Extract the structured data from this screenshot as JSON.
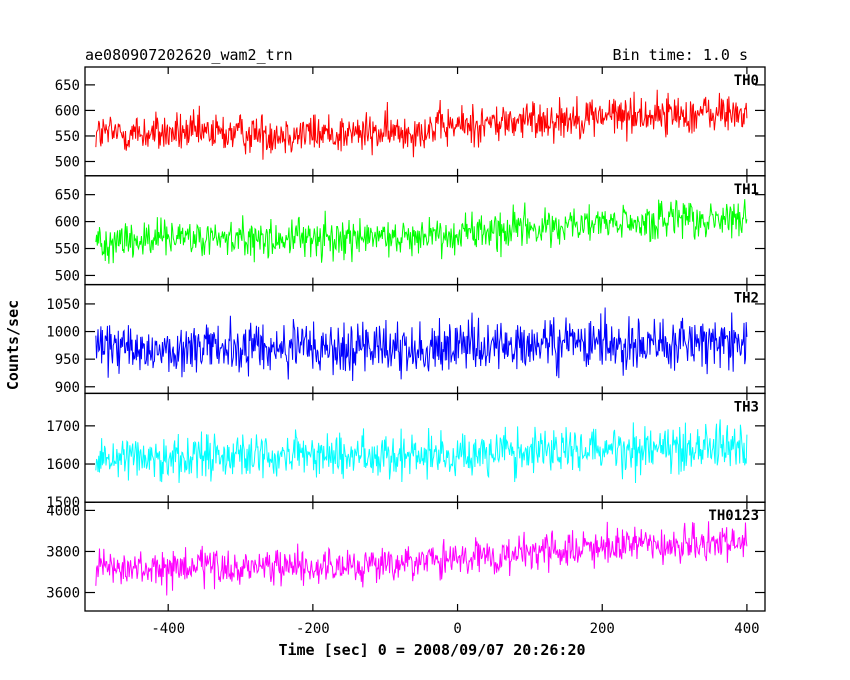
{
  "chart_data": {
    "type": "line",
    "title": "ae080907202620_wam2_trn",
    "subtitle": "Bin time: 1.0 s",
    "xlabel": "Time [sec] 0 = 2008/09/07 20:26:20",
    "ylabel": "Counts/sec",
    "xlim": [
      -515,
      425
    ],
    "xticks": [
      -400,
      -200,
      0,
      200,
      400
    ],
    "x_start": -500,
    "x_end": 400,
    "bin_time": 1.0,
    "grid": false,
    "legend": "none",
    "panels": [
      {
        "name": "TH0",
        "color": "#ff0000",
        "ylim": [
          472,
          685
        ],
        "yticks": [
          500,
          550,
          600,
          650
        ],
        "trend": [
          [
            -500,
            555
          ],
          [
            -100,
            555
          ],
          [
            0,
            570
          ],
          [
            200,
            590
          ],
          [
            400,
            595
          ]
        ],
        "noise": 28
      },
      {
        "name": "TH1",
        "color": "#00ff00",
        "ylim": [
          483,
          685
        ],
        "yticks": [
          500,
          550,
          600,
          650
        ],
        "trend": [
          [
            -500,
            565
          ],
          [
            -100,
            570
          ],
          [
            0,
            580
          ],
          [
            200,
            595
          ],
          [
            400,
            605
          ]
        ],
        "noise": 26
      },
      {
        "name": "TH2",
        "color": "#0000ff",
        "ylim": [
          888,
          1085
        ],
        "yticks": [
          900,
          950,
          1000,
          1050
        ],
        "trend": [
          [
            -500,
            968
          ],
          [
            0,
            970
          ],
          [
            200,
            978
          ],
          [
            400,
            980
          ]
        ],
        "noise": 34
      },
      {
        "name": "TH3",
        "color": "#00ffff",
        "ylim": [
          1500,
          1785
        ],
        "yticks": [
          1500,
          1600,
          1700
        ],
        "trend": [
          [
            -500,
            1620
          ],
          [
            0,
            1625
          ],
          [
            200,
            1640
          ],
          [
            400,
            1650
          ]
        ],
        "noise": 42
      },
      {
        "name": "TH0123",
        "color": "#ff00ff",
        "ylim": [
          3510,
          4040
        ],
        "yticks": [
          3600,
          3800,
          4000
        ],
        "trend": [
          [
            -500,
            3710
          ],
          [
            -100,
            3730
          ],
          [
            0,
            3760
          ],
          [
            200,
            3820
          ],
          [
            400,
            3840
          ]
        ],
        "noise": 62
      }
    ]
  }
}
